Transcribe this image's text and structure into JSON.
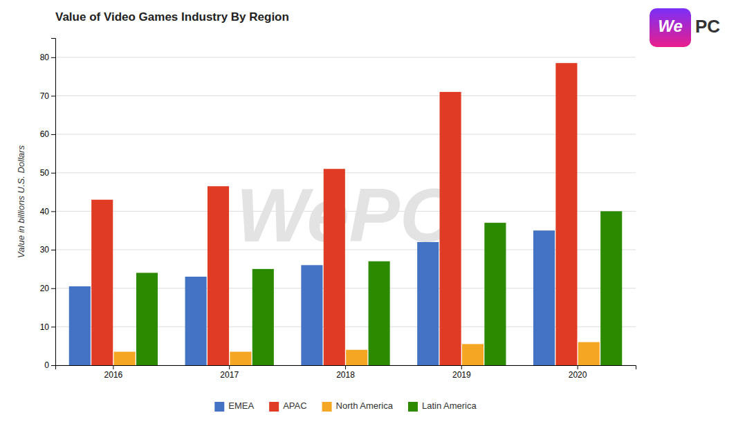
{
  "chart_data": {
    "type": "bar",
    "title": "Value of Video Games Industry By Region",
    "y_label": "Value in billions U.S. Dollars",
    "categories": [
      "2016",
      "2017",
      "2018",
      "2019",
      "2020"
    ],
    "series": [
      {
        "name": "EMEA",
        "color": "#4472C4",
        "values": [
          20.5,
          23.0,
          26.0,
          32.0,
          35.0
        ]
      },
      {
        "name": "APAC",
        "color": "#E03B24",
        "values": [
          43.0,
          46.5,
          51.0,
          71.0,
          78.5
        ]
      },
      {
        "name": "North America",
        "color": "#F5A623",
        "values": [
          3.5,
          3.5,
          4.0,
          5.5,
          6.0
        ]
      },
      {
        "name": "Latin America",
        "color": "#2B8A00",
        "values": [
          24.0,
          25.0,
          27.0,
          37.0,
          40.0
        ]
      }
    ],
    "ylim": [
      0,
      85
    ],
    "yticks": [
      0,
      10,
      20,
      30,
      40,
      50,
      60,
      70,
      80
    ],
    "grid": true,
    "legend": "bottom",
    "annotations": [
      "WePC",
      "We",
      "PC"
    ]
  }
}
